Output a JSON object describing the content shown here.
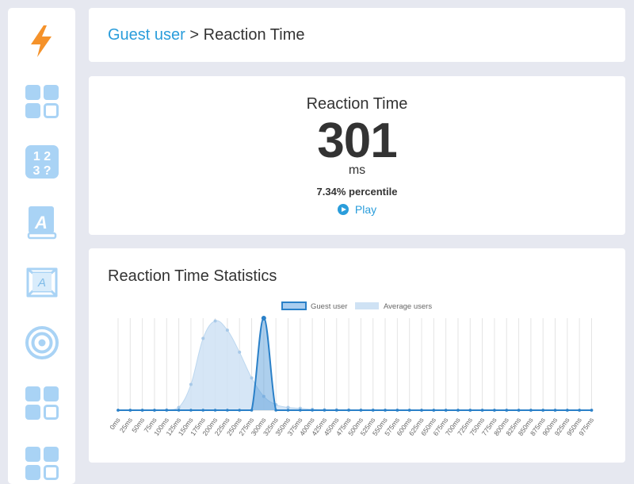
{
  "sidebar": {
    "items": [
      {
        "icon": "lightning-icon",
        "color": "#f5922a"
      },
      {
        "icon": "grid-icon",
        "color": "#a9d3f5"
      },
      {
        "icon": "number-memory-icon",
        "text": "1 2 3 ?",
        "color": "#a9d3f5"
      },
      {
        "icon": "verbal-memory-book-icon",
        "text": "A",
        "color": "#a9d3f5"
      },
      {
        "icon": "typing-keyboard-key-icon",
        "text": "A",
        "color": "#a9d3f5"
      },
      {
        "icon": "target-icon",
        "color": "#a9d3f5"
      },
      {
        "icon": "grid-icon",
        "color": "#a9d3f5"
      },
      {
        "icon": "grid-icon",
        "color": "#a9d3f5"
      }
    ]
  },
  "breadcrumb": {
    "user_link": "Guest user",
    "separator": ">",
    "page": "Reaction Time"
  },
  "result": {
    "title": "Reaction Time",
    "value": "301",
    "unit": "ms",
    "percentile": "7.34% percentile",
    "play_label": "Play"
  },
  "stats": {
    "title": "Reaction Time Statistics"
  },
  "colors": {
    "accent": "#2a9ddb",
    "guest_line": "#2a80c8",
    "average_fill": "#cfe2f4"
  },
  "chart_data": {
    "type": "area",
    "categories": [
      "0ms",
      "25ms",
      "50ms",
      "75ms",
      "100ms",
      "125ms",
      "150ms",
      "175ms",
      "200ms",
      "225ms",
      "250ms",
      "275ms",
      "300ms",
      "325ms",
      "350ms",
      "375ms",
      "400ms",
      "425ms",
      "450ms",
      "475ms",
      "500ms",
      "525ms",
      "550ms",
      "575ms",
      "600ms",
      "625ms",
      "650ms",
      "675ms",
      "700ms",
      "725ms",
      "750ms",
      "775ms",
      "800ms",
      "825ms",
      "850ms",
      "875ms",
      "900ms",
      "925ms",
      "950ms",
      "975ms"
    ],
    "series": [
      {
        "name": "Guest user",
        "values": [
          0,
          0,
          0,
          0,
          0,
          0,
          0,
          0,
          0,
          0,
          0,
          0,
          1.0,
          0,
          0,
          0,
          0,
          0,
          0,
          0,
          0,
          0,
          0,
          0,
          0,
          0,
          0,
          0,
          0,
          0,
          0,
          0,
          0,
          0,
          0,
          0,
          0,
          0,
          0,
          0
        ]
      },
      {
        "name": "Average users",
        "values": [
          0,
          0,
          0,
          0,
          0.003,
          0.03,
          0.28,
          0.78,
          0.97,
          0.87,
          0.63,
          0.35,
          0.15,
          0.06,
          0.03,
          0.02,
          0.01,
          0.005,
          0.004,
          0.003,
          0.002,
          0.002,
          0.001,
          0.001,
          0.001,
          0,
          0,
          0,
          0,
          0,
          0,
          0,
          0,
          0,
          0,
          0,
          0,
          0,
          0,
          0
        ]
      }
    ],
    "legend_position": "top",
    "grid": "vertical"
  }
}
